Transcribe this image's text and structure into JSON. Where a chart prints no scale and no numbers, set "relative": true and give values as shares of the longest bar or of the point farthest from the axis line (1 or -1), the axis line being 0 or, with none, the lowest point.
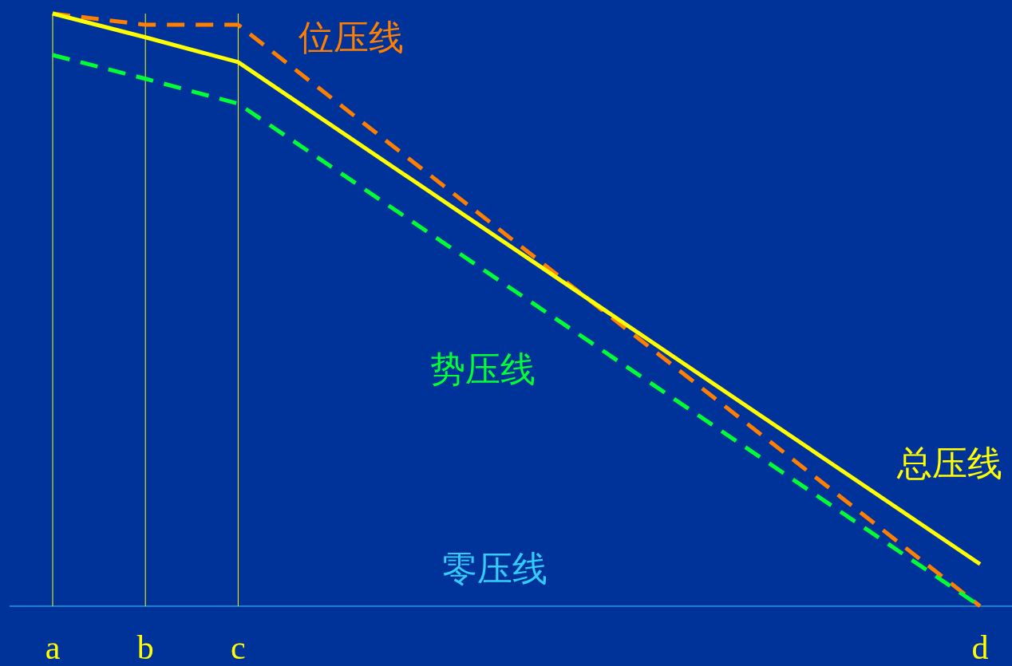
{
  "chart_data": {
    "type": "line",
    "relative": true,
    "categories": [
      "a",
      "b",
      "c",
      null,
      null,
      null,
      null,
      null,
      null,
      null,
      "d"
    ],
    "series": [
      {
        "name": "位压线",
        "color": "#ff7f00",
        "line_style": "dashed",
        "x": [
          "a",
          "b",
          "c",
          "d"
        ],
        "values": [
          1,
          0.981,
          0.981,
          0
        ]
      },
      {
        "name": "势压线",
        "color": "#00ff33",
        "line_style": "dashed",
        "x": [
          "a",
          "b",
          "c",
          "d"
        ],
        "values": [
          0.93,
          0.89,
          0.848,
          0
        ]
      },
      {
        "name": "总压线",
        "color": "#ffff00",
        "line_style": "solid",
        "x": [
          "a",
          "b",
          "c",
          "d"
        ],
        "values": [
          1,
          0.96,
          0.918,
          0.071
        ]
      }
    ],
    "ref_lines": [
      {
        "axis": "x",
        "value": "a",
        "color": "#ffff00"
      },
      {
        "axis": "x",
        "value": "b",
        "color": "#ffff00"
      },
      {
        "axis": "x",
        "value": "c",
        "color": "#ffff00"
      }
    ],
    "annotations": [
      "零压线"
    ]
  }
}
